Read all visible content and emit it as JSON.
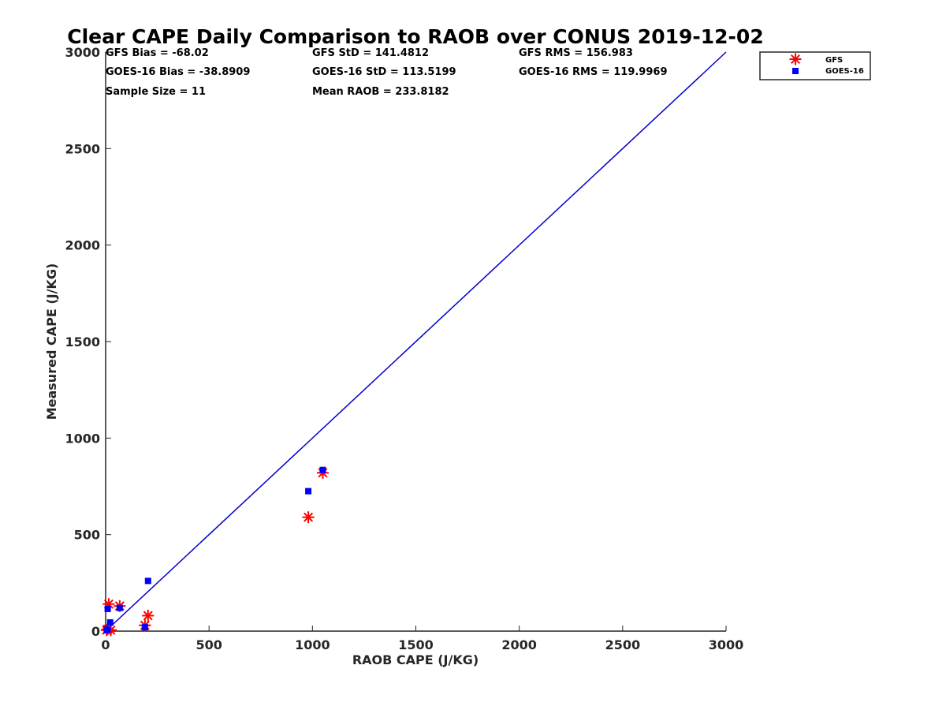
{
  "chart_data": {
    "type": "scatter",
    "title": "Clear CAPE Daily Comparison to RAOB over CONUS 2019-12-02",
    "xlabel": "RAOB CAPE (J/KG)",
    "ylabel": "Measured CAPE (J/KG)",
    "xlim": [
      0,
      3000
    ],
    "ylim": [
      0,
      3000
    ],
    "xticks": [
      0,
      500,
      1000,
      1500,
      2000,
      2500,
      3000
    ],
    "yticks": [
      0,
      500,
      1000,
      1500,
      2000,
      2500,
      3000
    ],
    "xtick_labels": [
      "0",
      "500",
      "1000",
      "1500",
      "2000",
      "2500",
      "3000"
    ],
    "ytick_labels": [
      "0",
      "500",
      "1000",
      "1500",
      "2000",
      "2500",
      "3000"
    ],
    "grid": false,
    "legend_position": "top-right (outside axes)",
    "reference_line": {
      "x": [
        0,
        3000
      ],
      "y": [
        0,
        3000
      ],
      "color": "#0000cc"
    },
    "series": [
      {
        "name": "GFS",
        "marker": "asterisk",
        "color": "#ff0000",
        "x": [
          5,
          10,
          15,
          25,
          68,
          190,
          205,
          980,
          1050
        ],
        "y": [
          5,
          10,
          140,
          5,
          130,
          30,
          80,
          590,
          820
        ]
      },
      {
        "name": "GOES-16",
        "marker": "square",
        "color": "#0000ff",
        "x": [
          5,
          10,
          10,
          22,
          68,
          190,
          205,
          980,
          1050
        ],
        "y": [
          5,
          10,
          115,
          45,
          120,
          20,
          260,
          725,
          835
        ]
      }
    ],
    "stats": [
      [
        "GFS Bias = -68.02",
        "GFS StD = 141.4812",
        "GFS RMS = 156.983"
      ],
      [
        "GOES-16 Bias = -38.8909",
        "GOES-16 StD = 113.5199",
        "GOES-16 RMS = 119.9969"
      ],
      [
        "Sample Size = 11",
        "Mean RAOB = 233.8182",
        ""
      ]
    ]
  }
}
